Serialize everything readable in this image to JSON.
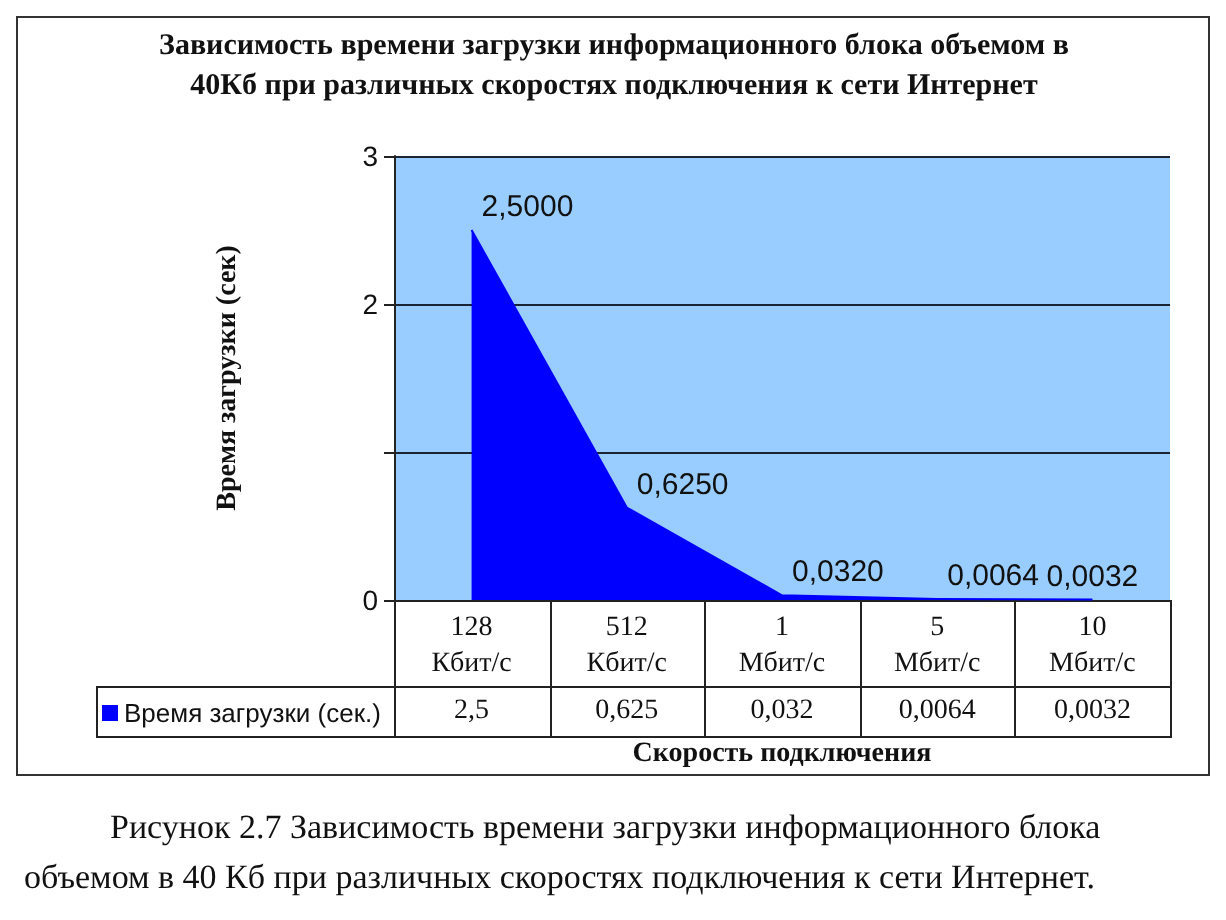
{
  "chart_data": {
    "type": "area",
    "title": "Зависимость времени загрузки информационного блока объемом в 40Кб при различных скоростях подключения к сети Интернет",
    "xlabel": "Скорость подключения",
    "ylabel": "Время загрузки (сек)",
    "categories": [
      "128 Кбит/с",
      "512 Кбит/с",
      "1 Мбит/с",
      "5 Мбит/с",
      "10 Мбит/с"
    ],
    "series": [
      {
        "name": "Время загрузки (сек.)",
        "color": "#0000ff",
        "values": [
          2.5,
          0.625,
          0.032,
          0.0064,
          0.0032
        ],
        "value_labels": [
          "2,5",
          "0,625",
          "0,032",
          "0,0064",
          "0,0032"
        ]
      }
    ],
    "ylim": [
      0,
      3
    ],
    "yticks": [
      0,
      {
        "value": 1,
        "label": null
      },
      2,
      3
    ],
    "grid": "y",
    "legend": "bottom left",
    "marker": "none",
    "annotations": [
      {
        "text": "2,5000",
        "x": "128 Кбит/с",
        "y": 2.5
      },
      {
        "text": "0,6250",
        "x": "512 Кбит/с",
        "y": 0.625
      },
      {
        "text": "0,0320",
        "x": "1 Мбит/с",
        "y": 0.032
      },
      {
        "text": "0,0064",
        "x": "5 Мбит/с",
        "y": 0.0064
      },
      {
        "text": "0,0032",
        "x": "10 Мбит/с",
        "y": 0.0032
      },
      "Рисунок 2.7 Зависимость времени загрузки информационного блока объемом в 40 Кб при различных скоростях подключения к сети Интернет."
    ]
  }
}
